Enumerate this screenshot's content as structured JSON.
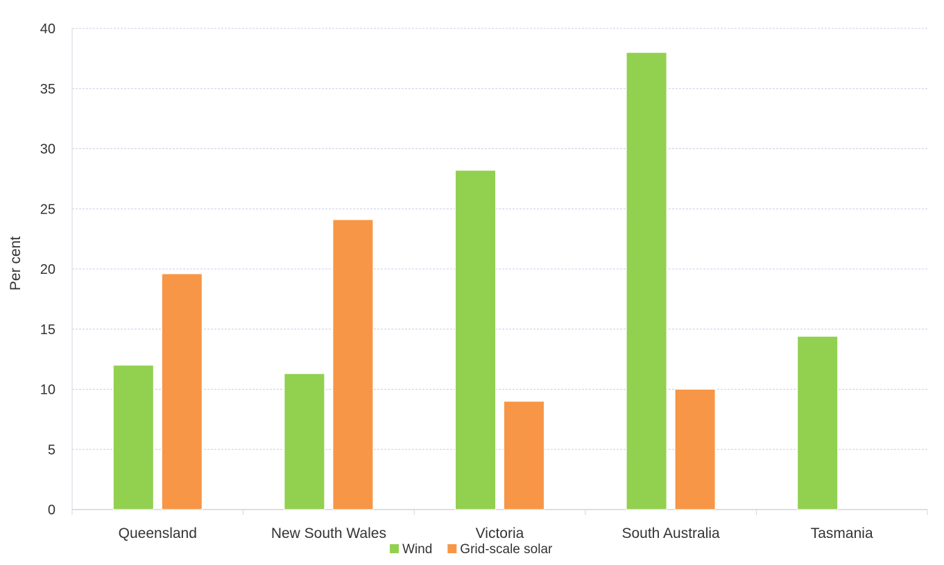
{
  "chart_data": {
    "type": "bar",
    "title": "",
    "xlabel": "",
    "ylabel": "Per cent",
    "ylim": [
      0,
      40
    ],
    "yticks": [
      0,
      5,
      10,
      15,
      20,
      25,
      30,
      35,
      40
    ],
    "grid": true,
    "legend_position": "bottom",
    "categories": [
      "Queensland",
      "New South Wales",
      "Victoria",
      "South Australia",
      "Tasmania"
    ],
    "series": [
      {
        "name": "Wind",
        "color": "#92d050",
        "values": [
          12.0,
          11.3,
          28.2,
          38.0,
          14.4
        ]
      },
      {
        "name": "Grid-scale solar",
        "color": "#f79646",
        "values": [
          19.6,
          24.1,
          9.0,
          10.0,
          null
        ]
      }
    ]
  }
}
